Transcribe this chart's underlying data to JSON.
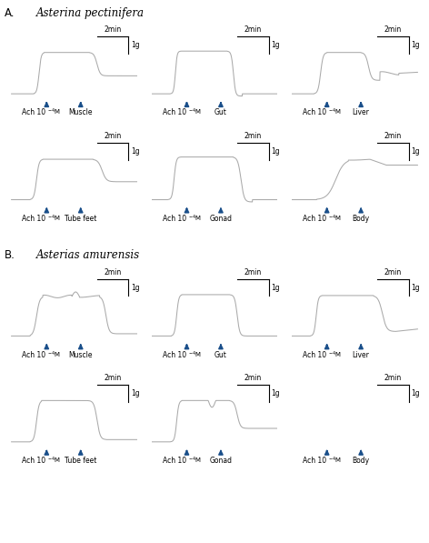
{
  "title_A": "A.",
  "species_A": "Asterina pectinifera",
  "title_B": "B.",
  "species_B": "Asterias amurensis",
  "title_fontsize": 8.5,
  "background_color": "#ffffff",
  "trace_color": "#aaaaaa",
  "arrow_color": "#1a4f8a",
  "label_fontsize": 5.5,
  "scale_fontsize": 5.5,
  "labels_A_row1": [
    "Muscle",
    "Gut",
    "Liver"
  ],
  "labels_A_row2": [
    "Tube feet",
    "Gonad",
    "Body"
  ],
  "labels_B_row1": [
    "Muscle",
    "Gut",
    "Liver"
  ],
  "labels_B_row2": [
    "Tube feet",
    "Gonad",
    "Body"
  ],
  "traces_A_row1": [
    "A_muscle",
    "A_gut",
    "A_liver"
  ],
  "traces_A_row2": [
    "A_tubefeet",
    "A_gonad",
    "A_body"
  ],
  "traces_B_row1": [
    "B_muscle",
    "B_gut",
    "B_liver"
  ],
  "traces_B_row2": [
    "B_tubefeet",
    "B_gonad",
    "B_body_none"
  ]
}
